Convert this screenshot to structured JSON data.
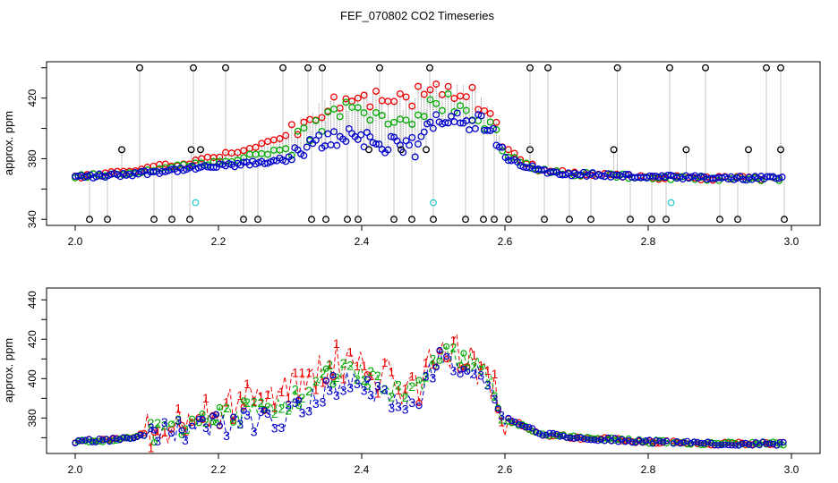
{
  "title": "FEF_070802  CO2 Timeseries",
  "colors": {
    "s1": "#ee0000",
    "s2": "#00aa00",
    "s3": "#0000cc",
    "spike": "#000000",
    "ref": "#33cccc",
    "link": "#777777"
  },
  "chart_data": [
    {
      "type": "scatter",
      "panel": "top",
      "title": "FEF_070802  CO2 Timeseries",
      "xlabel": "",
      "ylabel": "approx. ppm",
      "xlim": [
        2.0,
        3.0
      ],
      "ylim": [
        336,
        444
      ],
      "xticks": [
        "2.0",
        "2.2",
        "2.4",
        "2.6",
        "2.8",
        "3.0"
      ],
      "yticks": [
        "340",
        "380",
        "420"
      ],
      "series_note": "Red/green/blue open circles are channels 1/2/3; black circles are spike readings, cyan are reference readings; grey dotted lines connect consecutive readings.",
      "profile": {
        "x": [
          2.0,
          2.05,
          2.1,
          2.15,
          2.2,
          2.25,
          2.3,
          2.32,
          2.34,
          2.36,
          2.38,
          2.4,
          2.42,
          2.44,
          2.46,
          2.48,
          2.5,
          2.52,
          2.54,
          2.56,
          2.58,
          2.6,
          2.65,
          2.7,
          2.8,
          2.9,
          3.0
        ],
        "ch3": [
          368,
          369,
          371,
          373,
          375,
          377,
          380,
          385,
          390,
          394,
          396,
          395,
          390,
          388,
          386,
          388,
          406,
          410,
          407,
          404,
          398,
          380,
          372,
          370,
          368,
          367,
          367
        ],
        "ch2": [
          368,
          370,
          372,
          375,
          378,
          382,
          388,
          395,
          402,
          408,
          412,
          412,
          408,
          402,
          405,
          410,
          415,
          417,
          415,
          410,
          402,
          382,
          372,
          370,
          368,
          367,
          367
        ],
        "ch1": [
          368,
          370,
          374,
          377,
          382,
          388,
          395,
          402,
          410,
          416,
          418,
          418,
          418,
          412,
          418,
          422,
          428,
          428,
          425,
          420,
          410,
          386,
          372,
          370,
          368,
          367,
          367
        ]
      },
      "spikes_high": [
        2.09,
        2.165,
        2.21,
        2.29,
        2.325,
        2.345,
        2.425,
        2.495,
        2.635,
        2.66,
        2.757,
        2.83,
        2.88,
        2.965,
        2.985
      ],
      "spikes_low": [
        2.02,
        2.045,
        2.11,
        2.135,
        2.16,
        2.235,
        2.255,
        2.33,
        2.35,
        2.38,
        2.395,
        2.445,
        2.47,
        2.5,
        2.545,
        2.57,
        2.585,
        2.605,
        2.655,
        2.69,
        2.72,
        2.775,
        2.805,
        2.825,
        2.9,
        2.925,
        2.99
      ],
      "spikes_mid": [
        2.065,
        2.175,
        2.162,
        2.41,
        2.455,
        2.49,
        2.635,
        2.752,
        2.853,
        2.94,
        2.985
      ],
      "ref_points": [
        2.168,
        2.5,
        2.832
      ],
      "ref_value": 351,
      "spike_high_value": 440,
      "spike_low_value": 340,
      "spike_mid_value": 386,
      "gaps": [
        [
          2.664,
          2.667
        ]
      ]
    },
    {
      "type": "line",
      "panel": "bottom",
      "xlabel": "",
      "ylabel": "approx. ppm",
      "xlim": [
        2.0,
        3.0
      ],
      "ylim": [
        362,
        446
      ],
      "xticks": [
        "2.0",
        "2.2",
        "2.4",
        "2.6",
        "2.8",
        "3.0"
      ],
      "yticks": [
        "380",
        "400",
        "420",
        "440"
      ],
      "series": [
        {
          "name": "1",
          "marker": "1"
        },
        {
          "name": "2",
          "marker": "2"
        },
        {
          "name": "3",
          "marker": "3"
        }
      ],
      "series_note": "Lines plotted with numeric markers 1 (red), 2 (green), 3 (blue); circles where the three channels coincide.",
      "gaps": [
        [
          2.664,
          2.667
        ],
        [
          2.83,
          2.835
        ]
      ]
    }
  ]
}
